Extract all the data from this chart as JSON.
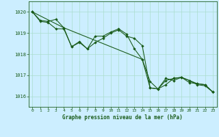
{
  "title": "Graphe pression niveau de la mer (hPa)",
  "bg_color": "#cceeff",
  "grid_color": "#aaddcc",
  "line_color": "#1a5c1a",
  "ylim": [
    1015.5,
    1020.5
  ],
  "xlim": [
    -0.5,
    23.5
  ],
  "yticks": [
    1016,
    1017,
    1018,
    1019,
    1020
  ],
  "xticks": [
    0,
    1,
    2,
    3,
    4,
    5,
    6,
    7,
    8,
    9,
    10,
    11,
    12,
    13,
    14,
    15,
    16,
    17,
    18,
    19,
    20,
    21,
    22,
    23
  ],
  "line1_x": [
    0,
    1,
    2,
    3,
    4,
    5,
    6,
    7,
    8,
    9,
    10,
    11,
    12,
    13,
    14,
    15,
    16,
    17,
    18,
    19,
    20,
    21,
    22,
    23
  ],
  "line1_y": [
    1020.0,
    1019.6,
    1019.55,
    1019.65,
    1019.25,
    1018.35,
    1018.6,
    1018.25,
    1018.85,
    1018.85,
    1019.05,
    1019.2,
    1018.95,
    1018.25,
    1017.75,
    1016.7,
    1016.35,
    1016.55,
    1016.85,
    1016.9,
    1016.75,
    1016.55,
    1016.5,
    1016.2
  ],
  "line2_x": [
    0,
    1,
    2,
    3,
    4,
    5,
    6,
    7,
    8,
    9,
    10,
    11,
    12,
    13,
    14,
    15,
    16,
    17,
    18,
    19,
    20,
    21,
    22,
    23
  ],
  "line2_y": [
    1020.0,
    1019.55,
    1019.5,
    1019.2,
    1019.2,
    1018.35,
    1018.55,
    1018.25,
    1018.55,
    1018.75,
    1019.0,
    1019.15,
    1018.85,
    1018.75,
    1018.4,
    1016.4,
    1016.35,
    1016.85,
    1016.75,
    1016.9,
    1016.65,
    1016.6,
    1016.55,
    1016.2
  ],
  "line3_x": [
    0,
    4,
    14,
    15,
    16,
    17,
    18,
    19,
    20,
    21,
    22,
    23
  ],
  "line3_y": [
    1020.0,
    1019.25,
    1017.75,
    1016.4,
    1016.35,
    1016.75,
    1016.85,
    1016.9,
    1016.75,
    1016.6,
    1016.55,
    1016.2
  ],
  "markersize": 2.2
}
